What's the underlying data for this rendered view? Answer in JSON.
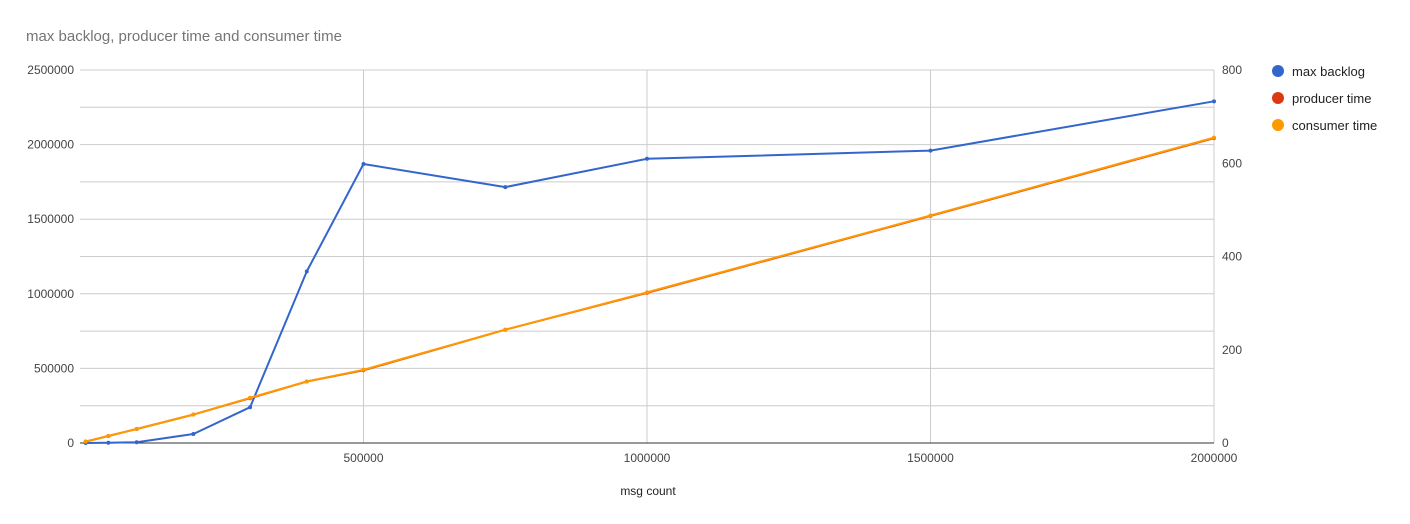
{
  "chart_data": {
    "type": "line",
    "title": "max backlog, producer time and consumer time",
    "xlabel": "msg count",
    "ylabel": "",
    "y2label": "",
    "xlim": [
      0,
      2000000
    ],
    "ylim": [
      0,
      2500000
    ],
    "y2lim": [
      0,
      800
    ],
    "x_ticks": [
      500000,
      1000000,
      1500000,
      2000000
    ],
    "x_tick_labels": [
      "500000",
      "1000000",
      "1500000",
      "2000000"
    ],
    "y_ticks": [
      0,
      500000,
      1000000,
      1500000,
      2000000,
      2500000
    ],
    "y_tick_labels": [
      "0",
      "500000",
      "1000000",
      "1500000",
      "2000000",
      "2500000"
    ],
    "y2_ticks": [
      0,
      200,
      400,
      600,
      800
    ],
    "y2_tick_labels": [
      "0",
      "200",
      "400",
      "600",
      "800"
    ],
    "grid": true,
    "legend_position": "right",
    "series": [
      {
        "name": "max backlog",
        "color": "#3366cc",
        "axis": "left",
        "points": [
          [
            10000,
            0
          ],
          [
            50000,
            2000
          ],
          [
            100000,
            5000
          ],
          [
            200000,
            60000
          ],
          [
            300000,
            240000
          ],
          [
            400000,
            1150000
          ],
          [
            500000,
            1870000
          ],
          [
            750000,
            1715000
          ],
          [
            1000000,
            1905000
          ],
          [
            1500000,
            1960000
          ],
          [
            2000000,
            2290000
          ]
        ]
      },
      {
        "name": "producer time",
        "color": "#dc3912",
        "axis": "right",
        "points": [
          [
            10000,
            3
          ],
          [
            50000,
            15
          ],
          [
            100000,
            30
          ],
          [
            200000,
            61
          ],
          [
            300000,
            96
          ],
          [
            400000,
            132
          ],
          [
            500000,
            156
          ],
          [
            750000,
            243
          ],
          [
            1000000,
            322
          ],
          [
            1500000,
            487
          ],
          [
            2000000,
            654
          ]
        ]
      },
      {
        "name": "consumer time",
        "color": "#ff9900",
        "axis": "right",
        "points": [
          [
            10000,
            3
          ],
          [
            50000,
            15
          ],
          [
            100000,
            30
          ],
          [
            200000,
            61
          ],
          [
            300000,
            97
          ],
          [
            400000,
            132
          ],
          [
            500000,
            157
          ],
          [
            750000,
            243
          ],
          [
            1000000,
            323
          ],
          [
            1500000,
            488
          ],
          [
            2000000,
            655
          ]
        ]
      }
    ]
  }
}
